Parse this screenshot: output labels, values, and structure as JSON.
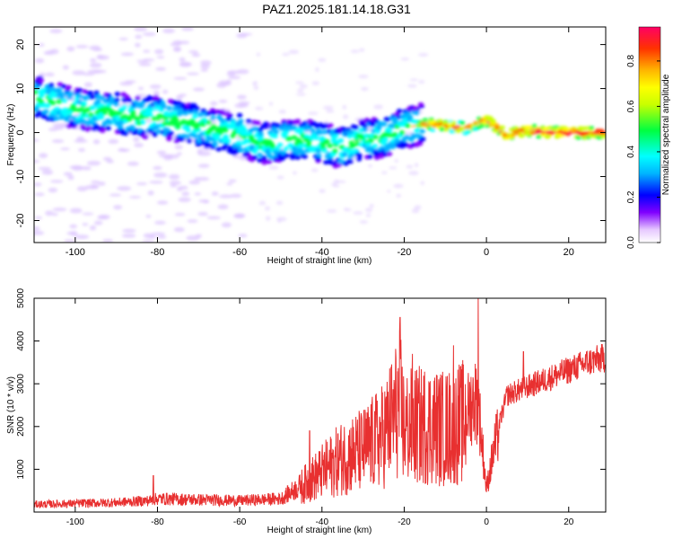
{
  "title": "PAZ1.2025.181.14.18.G31",
  "chart_data": [
    {
      "type": "heatmap",
      "name": "spectrogram",
      "xlabel": "Height of straight line (km)",
      "ylabel": "Frequency (Hz)",
      "xlim": [
        -110,
        29
      ],
      "ylim": [
        -25,
        24
      ],
      "xticks": [
        -100,
        -80,
        -60,
        -40,
        -20,
        0,
        20
      ],
      "yticks": [
        -20,
        -10,
        0,
        10,
        20
      ],
      "ridge": {
        "x": [
          -109,
          -104,
          -100,
          -95,
          -90,
          -85,
          -80,
          -75,
          -70,
          -65,
          -60,
          -55,
          -50,
          -45,
          -40,
          -35,
          -30,
          -25,
          -20,
          -15,
          -10,
          -5,
          0,
          5,
          10,
          15,
          20,
          25,
          29
        ],
        "y": [
          8,
          6.5,
          5.5,
          5,
          4.5,
          3.5,
          3.5,
          2.5,
          1.5,
          0.5,
          -0.5,
          -2.5,
          -2,
          -1.5,
          -2.5,
          -3.5,
          -1.5,
          -1,
          1,
          2,
          1.5,
          1,
          3,
          -0.5,
          0.5,
          0,
          0,
          0,
          0
        ]
      },
      "colorbar": {
        "label": "Normalized spectral amplitude",
        "ticks": [
          "0.0",
          "0.2",
          "0.4",
          "0.6",
          "0.8"
        ],
        "range": [
          0,
          1
        ]
      }
    },
    {
      "type": "line",
      "name": "snr",
      "xlabel": "Height of straight line (km)",
      "ylabel": "SNR (10 * v/v)",
      "xlim": [
        -110,
        29
      ],
      "ylim": [
        0,
        5000
      ],
      "xticks": [
        -100,
        -80,
        -60,
        -40,
        -20,
        0,
        20
      ],
      "yticks": [
        1000,
        2000,
        3000,
        4000,
        5000
      ],
      "color": "#e83030",
      "envelope": {
        "x": [
          -110,
          -90,
          -82,
          -80,
          -60,
          -50,
          -45,
          -40,
          -35,
          -30,
          -25,
          -21,
          -20,
          -15,
          -10,
          -5,
          -3,
          -2,
          0,
          2,
          5,
          10,
          15,
          20,
          25,
          29
        ],
        "y": [
          200,
          250,
          300,
          350,
          300,
          350,
          700,
          1100,
          1500,
          1700,
          2100,
          3000,
          2300,
          2400,
          2300,
          2500,
          2900,
          2800,
          600,
          1700,
          2800,
          3000,
          3200,
          3400,
          3600,
          3700
        ]
      },
      "spikes": [
        {
          "x": -81,
          "y": 850
        },
        {
          "x": -43,
          "y": 1900
        },
        {
          "x": -21,
          "y": 4550
        },
        {
          "x": -18,
          "y": 3700
        },
        {
          "x": -8,
          "y": 3900
        },
        {
          "x": -2,
          "y": 5000
        },
        {
          "x": 9,
          "y": 3750
        }
      ]
    }
  ]
}
